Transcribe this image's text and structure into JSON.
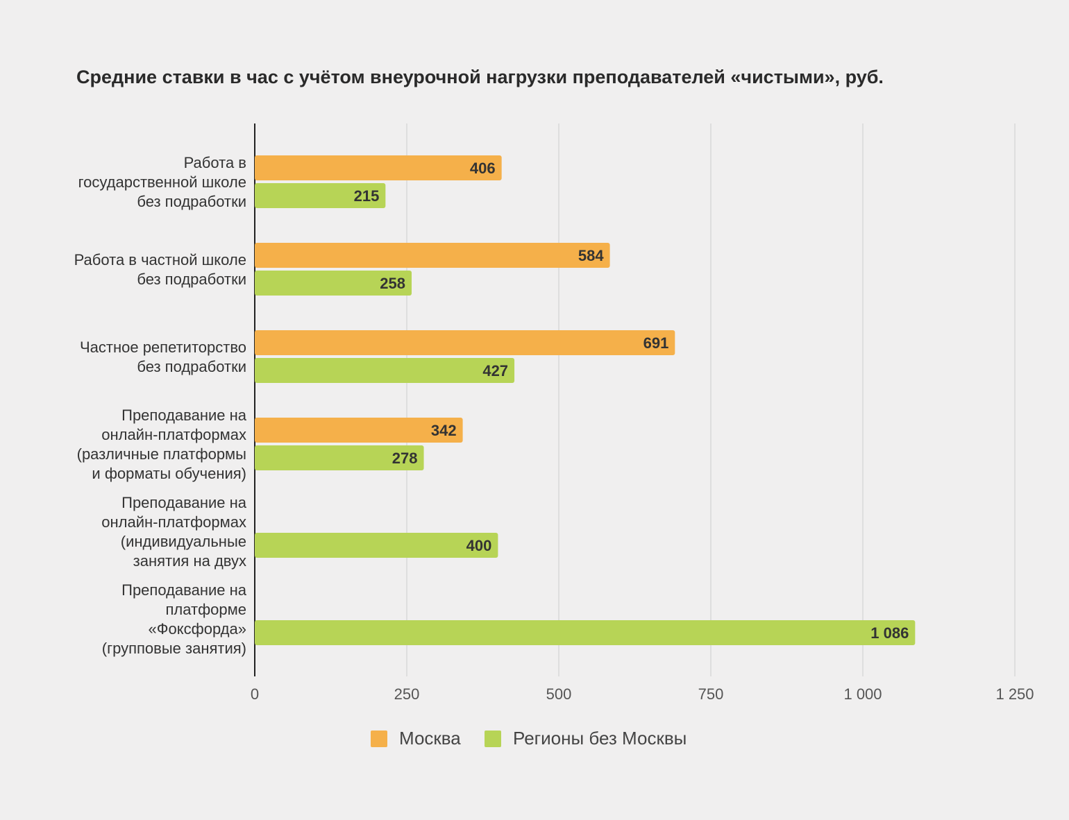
{
  "chart_data": {
    "type": "bar",
    "orientation": "horizontal",
    "title": "Средние ставки в час с учётом внеурочной нагрузки преподавателей «чистыми», руб.",
    "categories": [
      [
        "Работа в",
        "государственной школе",
        "без подработки"
      ],
      [
        "Работа в частной школе",
        "без подработки"
      ],
      [
        "Частное репетиторство",
        "без подработки"
      ],
      [
        "Преподавание на",
        "онлайн-платформах",
        "(различные платформы",
        "и форматы обучения)"
      ],
      [
        "Преподавание на",
        "онлайн-платформах",
        "(индивидуальные",
        "занятия на двух"
      ],
      [
        "Преподавание на",
        "платформе",
        "«Фоксфорда»",
        "(групповые занятия)"
      ]
    ],
    "series": [
      {
        "name": "Москва",
        "color": "#f5b04a",
        "values": [
          406,
          584,
          691,
          342,
          null,
          null
        ],
        "labels": [
          "406",
          "584",
          "691",
          "342",
          "",
          ""
        ]
      },
      {
        "name": "Регионы без Москвы",
        "color": "#b7d456",
        "values": [
          215,
          258,
          427,
          278,
          400,
          1086
        ],
        "labels": [
          "215",
          "258",
          "427",
          "278",
          "400",
          "1 086"
        ]
      }
    ],
    "xlim": [
      0,
      1250
    ],
    "ticks": [
      0,
      250,
      500,
      750,
      1000,
      1250
    ],
    "tick_labels": [
      "0",
      "250",
      "500",
      "750",
      "1 000",
      "1 250"
    ],
    "grid": true,
    "legend_position": "bottom"
  }
}
